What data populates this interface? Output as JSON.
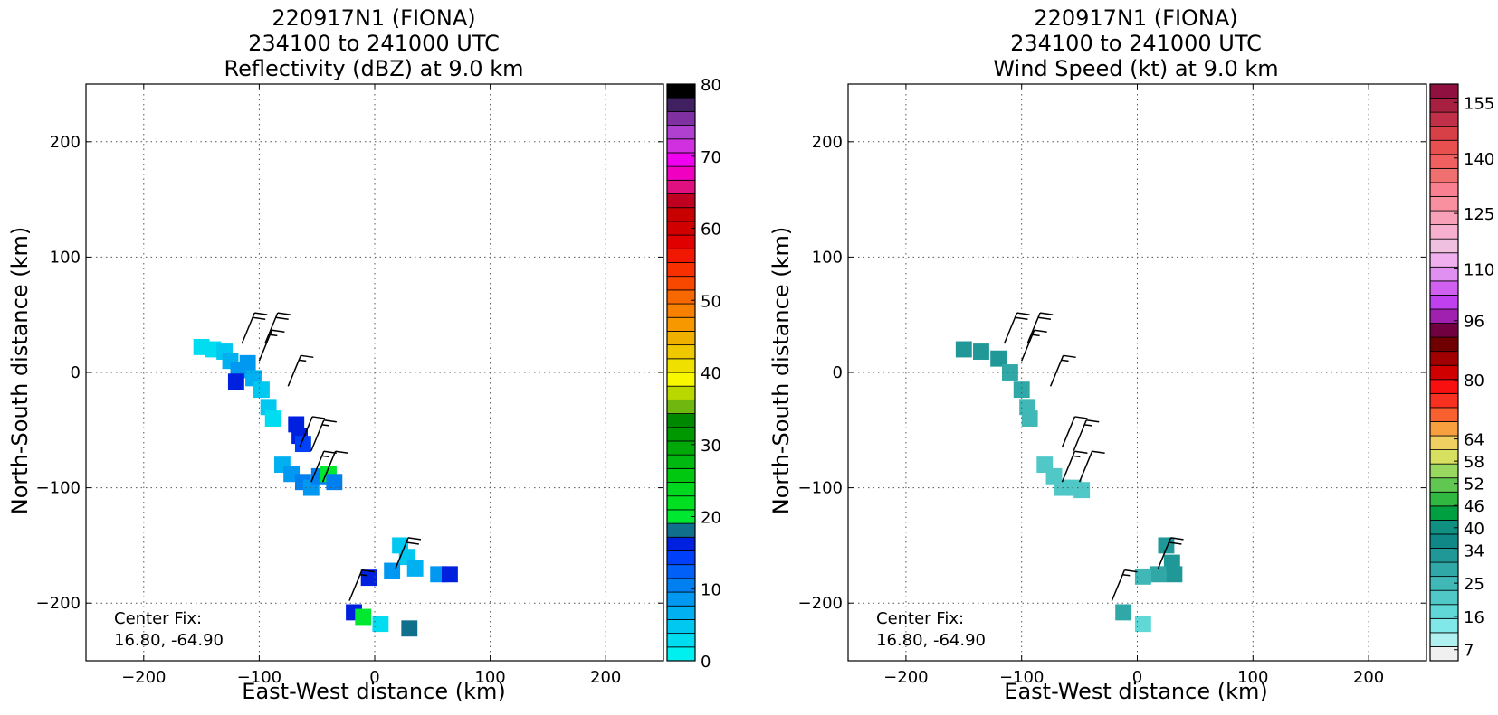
{
  "chart_data": [
    {
      "type": "heatmap",
      "title_lines": [
        "220917N1 (FIONA)",
        "234100 to 241000 UTC",
        "Reflectivity (dBZ) at 9.0 km"
      ],
      "xlabel": "East-West distance (km)",
      "ylabel": "North-South distance (km)",
      "xlim": [
        -250,
        250
      ],
      "ylim": [
        -250,
        250
      ],
      "xticks": [
        -200,
        -100,
        0,
        100,
        200
      ],
      "yticks": [
        -200,
        -100,
        0,
        100,
        200
      ],
      "grid": true,
      "annotation_lines": [
        "Center Fix:",
        "16.80, -64.90"
      ],
      "colorbar": {
        "min": 0,
        "max": 80,
        "step": 2.5,
        "ticks": [
          0,
          10,
          20,
          30,
          40,
          50,
          60,
          70,
          80
        ],
        "colors": [
          "#00f0f0",
          "#00dcf0",
          "#00c8f0",
          "#00b0f0",
          "#0098f0",
          "#0080f0",
          "#0060f8",
          "#0040f8",
          "#0020e0",
          "#10708c",
          "#00e830",
          "#00e020",
          "#00d820",
          "#00c810",
          "#00b810",
          "#00a808",
          "#009800",
          "#008800",
          "#70b810",
          "#b8d800",
          "#f8f800",
          "#f0e000",
          "#f0c800",
          "#f0b000",
          "#f89800",
          "#f88000",
          "#f86800",
          "#f84800",
          "#f83000",
          "#f01800",
          "#e00000",
          "#d00000",
          "#c80000",
          "#c00020",
          "#e01080",
          "#f000c0",
          "#f000f0",
          "#d030e0",
          "#b040d0",
          "#8030a0",
          "#402060",
          "#000000"
        ]
      },
      "echoes": [
        {
          "x": -150,
          "y": 22,
          "v": 3
        },
        {
          "x": -140,
          "y": 20,
          "v": 4
        },
        {
          "x": -130,
          "y": 18,
          "v": 6
        },
        {
          "x": -125,
          "y": 10,
          "v": 8
        },
        {
          "x": -118,
          "y": 2,
          "v": 10
        },
        {
          "x": -110,
          "y": 8,
          "v": 12
        },
        {
          "x": -105,
          "y": -5,
          "v": 9
        },
        {
          "x": -98,
          "y": -15,
          "v": 7
        },
        {
          "x": -92,
          "y": -30,
          "v": 5
        },
        {
          "x": -88,
          "y": -40,
          "v": 4
        },
        {
          "x": -120,
          "y": -8,
          "v": 22
        },
        {
          "x": -68,
          "y": -45,
          "v": 20
        },
        {
          "x": -65,
          "y": -55,
          "v": 22
        },
        {
          "x": -62,
          "y": -62,
          "v": 18
        },
        {
          "x": -80,
          "y": -80,
          "v": 8
        },
        {
          "x": -72,
          "y": -88,
          "v": 11
        },
        {
          "x": -62,
          "y": -95,
          "v": 13
        },
        {
          "x": -55,
          "y": -100,
          "v": 12
        },
        {
          "x": -48,
          "y": -90,
          "v": 14
        },
        {
          "x": -40,
          "y": -88,
          "v": 25
        },
        {
          "x": -35,
          "y": -95,
          "v": 13
        },
        {
          "x": 22,
          "y": -150,
          "v": 5
        },
        {
          "x": 28,
          "y": -160,
          "v": 7
        },
        {
          "x": 35,
          "y": -170,
          "v": 9
        },
        {
          "x": 15,
          "y": -172,
          "v": 12
        },
        {
          "x": -5,
          "y": -178,
          "v": 20
        },
        {
          "x": 55,
          "y": -175,
          "v": 11
        },
        {
          "x": 65,
          "y": -175,
          "v": 20
        },
        {
          "x": -18,
          "y": -208,
          "v": 22
        },
        {
          "x": -10,
          "y": -212,
          "v": 26
        },
        {
          "x": 30,
          "y": -222,
          "v": 24
        },
        {
          "x": 5,
          "y": -218,
          "v": 4
        }
      ],
      "barbs": [
        {
          "x": -115,
          "y": 25,
          "kt": 20
        },
        {
          "x": -95,
          "y": 25,
          "kt": 20
        },
        {
          "x": -100,
          "y": 10,
          "kt": 15
        },
        {
          "x": -75,
          "y": -12,
          "kt": 15
        },
        {
          "x": -65,
          "y": -65,
          "kt": 10
        },
        {
          "x": -55,
          "y": -68,
          "kt": 15
        },
        {
          "x": -55,
          "y": -95,
          "kt": 15
        },
        {
          "x": -45,
          "y": -95,
          "kt": 10
        },
        {
          "x": 18,
          "y": -170,
          "kt": 20
        },
        {
          "x": -22,
          "y": -198,
          "kt": 15
        }
      ]
    },
    {
      "type": "heatmap",
      "title_lines": [
        "220917N1 (FIONA)",
        "234100 to 241000 UTC",
        "Wind Speed (kt) at 9.0 km"
      ],
      "xlabel": "East-West distance (km)",
      "ylabel": "North-South distance (km)",
      "xlim": [
        -250,
        250
      ],
      "ylim": [
        -250,
        250
      ],
      "xticks": [
        -200,
        -100,
        0,
        100,
        200
      ],
      "yticks": [
        -200,
        -100,
        0,
        100,
        200
      ],
      "grid": true,
      "annotation_lines": [
        "Center Fix:",
        "16.80, -64.90"
      ],
      "colorbar": {
        "min": 4,
        "max": 160,
        "step": 3,
        "ticks": [
          7,
          16,
          25,
          34,
          40,
          46,
          52,
          58,
          64,
          80,
          96,
          110,
          125,
          140,
          155
        ],
        "colors": [
          "#f0f0f0",
          "#b0f0f0",
          "#80e8e8",
          "#60d8d8",
          "#50c8c8",
          "#40b8b8",
          "#30a8a8",
          "#209898",
          "#108888",
          "#109080",
          "#00a040",
          "#30b840",
          "#60c850",
          "#98d860",
          "#d8e060",
          "#f0d060",
          "#f8a040",
          "#f86030",
          "#f83020",
          "#f81010",
          "#d00000",
          "#a00000",
          "#700000",
          "#700040",
          "#a020b0",
          "#c040f0",
          "#d060f0",
          "#e090f0",
          "#f0b0f0",
          "#f0c0e0",
          "#f8b0d0",
          "#f8a0b8",
          "#f890a0",
          "#f88090",
          "#f07070",
          "#f06060",
          "#e85050",
          "#d84048",
          "#c03048",
          "#a82040",
          "#901040"
        ]
      },
      "echoes": [
        {
          "x": -150,
          "y": 20,
          "v": 25
        },
        {
          "x": -135,
          "y": 18,
          "v": 25
        },
        {
          "x": -120,
          "y": 12,
          "v": 25
        },
        {
          "x": -110,
          "y": 0,
          "v": 24
        },
        {
          "x": -100,
          "y": -15,
          "v": 22
        },
        {
          "x": -95,
          "y": -30,
          "v": 21
        },
        {
          "x": -93,
          "y": -40,
          "v": 20
        },
        {
          "x": -80,
          "y": -80,
          "v": 18
        },
        {
          "x": -72,
          "y": -90,
          "v": 17
        },
        {
          "x": -65,
          "y": -100,
          "v": 18
        },
        {
          "x": -55,
          "y": -100,
          "v": 17
        },
        {
          "x": -48,
          "y": -102,
          "v": 16
        },
        {
          "x": 25,
          "y": -150,
          "v": 25
        },
        {
          "x": 30,
          "y": -165,
          "v": 26
        },
        {
          "x": 32,
          "y": -175,
          "v": 25
        },
        {
          "x": 18,
          "y": -175,
          "v": 22
        },
        {
          "x": 5,
          "y": -177,
          "v": 20
        },
        {
          "x": -12,
          "y": -208,
          "v": 22
        },
        {
          "x": 5,
          "y": -218,
          "v": 14
        }
      ],
      "barbs": [
        {
          "x": -115,
          "y": 25,
          "kt": 20
        },
        {
          "x": -95,
          "y": 25,
          "kt": 20
        },
        {
          "x": -100,
          "y": 10,
          "kt": 15
        },
        {
          "x": -75,
          "y": -12,
          "kt": 15
        },
        {
          "x": -65,
          "y": -65,
          "kt": 10
        },
        {
          "x": -55,
          "y": -68,
          "kt": 15
        },
        {
          "x": -65,
          "y": -95,
          "kt": 15
        },
        {
          "x": -50,
          "y": -95,
          "kt": 10
        },
        {
          "x": 18,
          "y": -170,
          "kt": 20
        },
        {
          "x": -22,
          "y": -198,
          "kt": 15
        }
      ]
    }
  ]
}
